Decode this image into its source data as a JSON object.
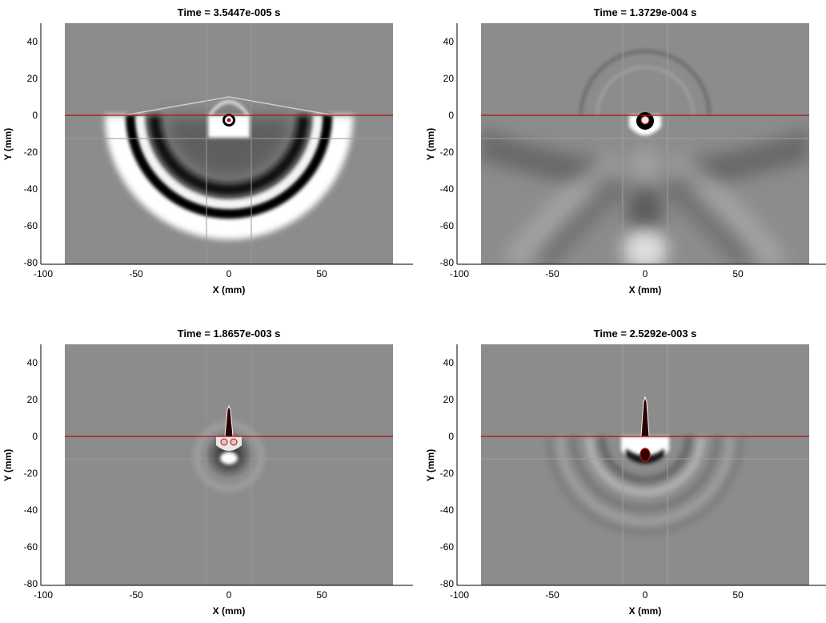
{
  "panels": [
    {
      "title": "Time = 3.5447e-005 s",
      "xlabel": "X (mm)",
      "ylabel": "Y (mm)",
      "state": "early-pressure-rings"
    },
    {
      "title": "Time = 1.3729e-004 s",
      "xlabel": "X (mm)",
      "ylabel": "Y (mm)",
      "state": "diffuse-wave-pattern"
    },
    {
      "title": "Time = 1.8657e-003 s",
      "xlabel": "X (mm)",
      "ylabel": "Y (mm)",
      "state": "jet-forming"
    },
    {
      "title": "Time = 2.5292e-003 s",
      "xlabel": "X (mm)",
      "ylabel": "Y (mm)",
      "state": "jet-and-faint-rings"
    }
  ],
  "axes": {
    "xlim": [
      -100,
      90
    ],
    "ylim": [
      -82,
      50
    ],
    "x_ticks": [
      -100,
      -50,
      0,
      50
    ],
    "y_ticks": [
      -80,
      -60,
      -40,
      -20,
      0,
      20,
      40
    ]
  },
  "colors": {
    "field": "#8c8c8c",
    "interface_line": "#b01010",
    "dark": "#050505",
    "light": "#ffffff"
  }
}
